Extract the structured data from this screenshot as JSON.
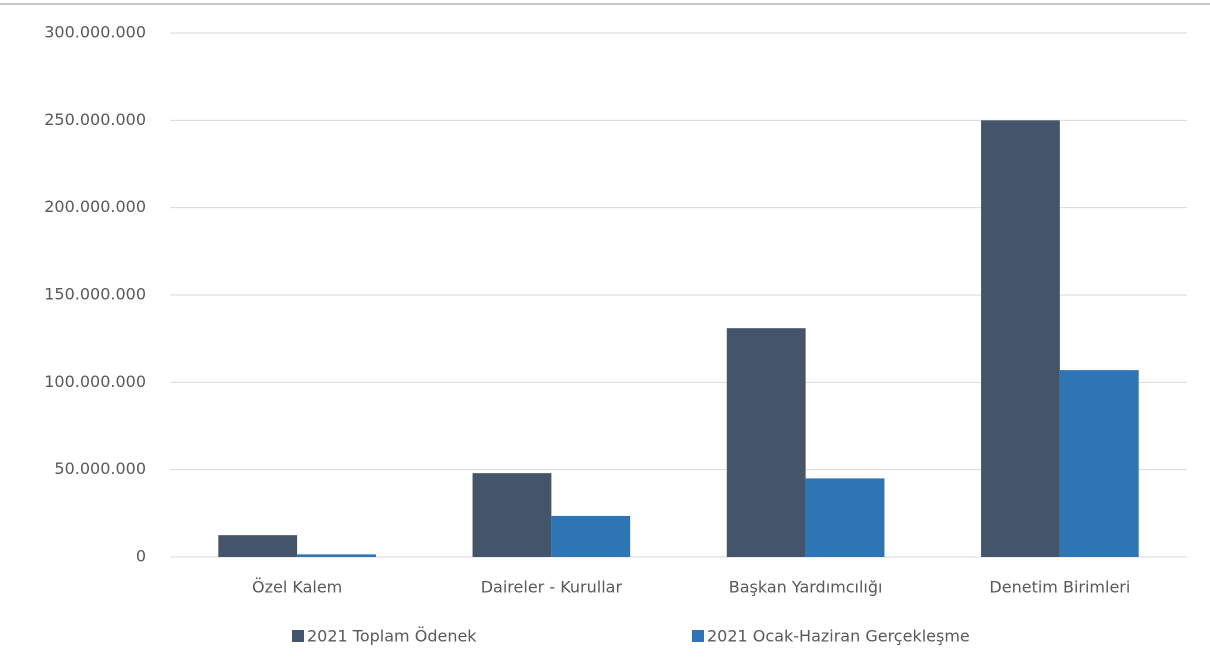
{
  "chart_data": {
    "type": "bar",
    "categories": [
      "Özel Kalem",
      "Daireler - Kurullar",
      "Başkan Yardımcılığı",
      "Denetim Birimleri"
    ],
    "series": [
      {
        "name": "2021 Toplam Ödenek",
        "color": "#44546a",
        "values": [
          12500000,
          48000000,
          131000000,
          250000000
        ]
      },
      {
        "name": "2021 Ocak-Haziran Gerçekleşme",
        "color": "#2e75b6",
        "values": [
          1500000,
          23500000,
          45000000,
          107000000
        ]
      }
    ],
    "ylim": [
      0,
      300000000
    ],
    "yticks": [
      0,
      {
        "value": 50000000,
        "label": "50.000.000"
      },
      {
        "value": 100000000,
        "label": "100.000.000"
      },
      {
        "value": 150000000,
        "label": "150.000.000"
      },
      {
        "value": 200000000,
        "label": "200.000.000"
      },
      {
        "value": 250000000,
        "label": "250.000.000"
      },
      {
        "value": 300000000,
        "label": "300.000.000"
      }
    ],
    "grid": true,
    "legend": "bottom"
  }
}
